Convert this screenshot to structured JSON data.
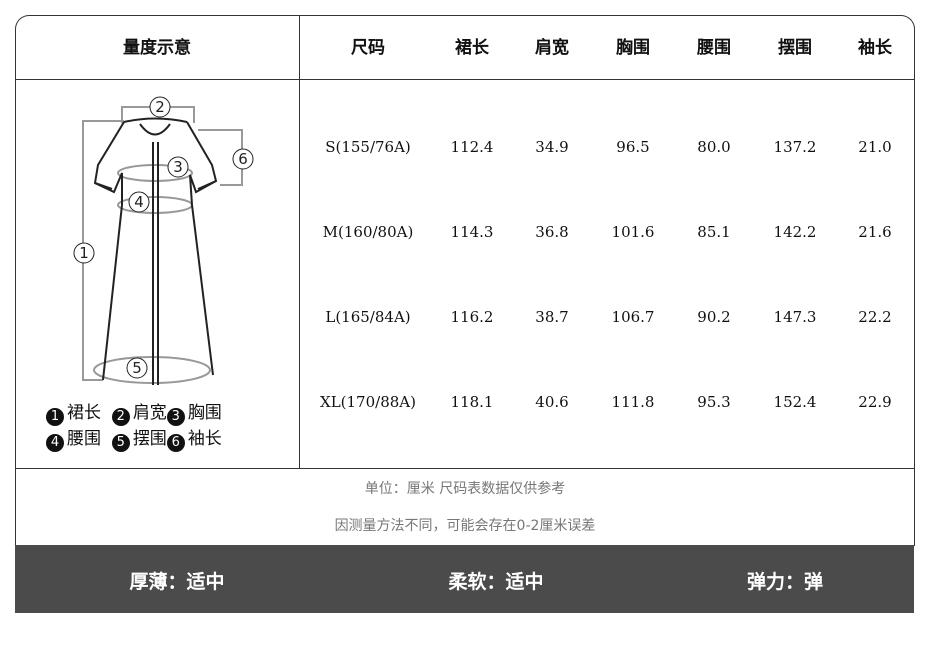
{
  "header": {
    "diagram": "量度示意",
    "size": "尺码",
    "columns": [
      "裙长",
      "肩宽",
      "胸围",
      "腰围",
      "摆围",
      "袖长"
    ]
  },
  "rows": [
    {
      "size": "S(155/76A)",
      "values": [
        "112.4",
        "34.9",
        "96.5",
        "80.0",
        "137.2",
        "21.0"
      ]
    },
    {
      "size": "M(160/80A)",
      "values": [
        "114.3",
        "36.8",
        "101.6",
        "85.1",
        "142.2",
        "21.6"
      ]
    },
    {
      "size": "L(165/84A)",
      "values": [
        "116.2",
        "38.7",
        "106.7",
        "90.2",
        "147.3",
        "22.2"
      ]
    },
    {
      "size": "XL(170/88A)",
      "values": [
        "118.1",
        "40.6",
        "111.8",
        "95.3",
        "152.4",
        "22.9"
      ]
    }
  ],
  "diagram": {
    "markers": [
      "1",
      "2",
      "3",
      "4",
      "5",
      "6"
    ],
    "legend": [
      {
        "n": "1",
        "label": "裙长"
      },
      {
        "n": "2",
        "label": "肩宽"
      },
      {
        "n": "3",
        "label": "胸围"
      },
      {
        "n": "4",
        "label": "腰围"
      },
      {
        "n": "5",
        "label": "摆围"
      },
      {
        "n": "6",
        "label": "袖长"
      }
    ]
  },
  "notes": [
    "单位：厘米  尺码表数据仅供参考",
    "因测量方法不同，可能会存在0-2厘米误差"
  ],
  "attributes": [
    "厚薄：适中",
    "柔软：适中",
    "弹力：弹"
  ],
  "colors": {
    "band": "#4b4b4b",
    "note": "#777777"
  }
}
